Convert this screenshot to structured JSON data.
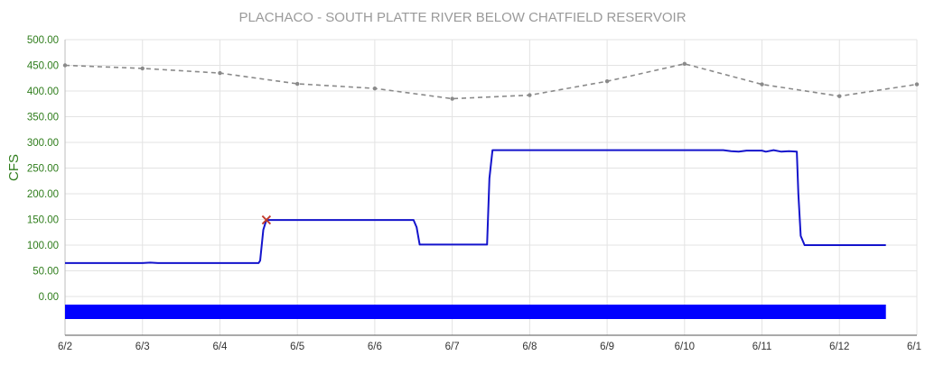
{
  "chart_data": {
    "type": "line",
    "title": "PLACHACO - SOUTH PLATTE RIVER BELOW CHATFIELD RESERVOIR",
    "xlabel": "",
    "ylabel": "CFS",
    "ylim": [
      0,
      500
    ],
    "y_ticks": [
      "500.00",
      "450.00",
      "400.00",
      "350.00",
      "300.00",
      "250.00",
      "200.00",
      "150.00",
      "100.00",
      "50.00",
      "0.00"
    ],
    "x_tick_labels": [
      "6/2",
      "6/3",
      "6/4",
      "6/5",
      "6/6",
      "6/7",
      "6/8",
      "6/9",
      "6/10",
      "6/11",
      "6/12",
      "6/1"
    ],
    "x_range_days": [
      2,
      13
    ],
    "grid": true,
    "legend": "none",
    "colors": {
      "flow": "#1414cc",
      "reference": "#8a8a8a",
      "marker": "#c0392b",
      "band": "#0000ff",
      "title": "#9a9a9a",
      "axis_label": "#2f7d1c"
    },
    "series": [
      {
        "style": "solid",
        "points": [
          [
            2.0,
            65
          ],
          [
            3.0,
            65
          ],
          [
            3.1,
            66
          ],
          [
            3.2,
            65
          ],
          [
            4.0,
            65
          ],
          [
            4.5,
            65
          ],
          [
            4.52,
            70
          ],
          [
            4.56,
            130
          ],
          [
            4.6,
            149
          ],
          [
            5.0,
            149
          ],
          [
            6.0,
            149
          ],
          [
            6.5,
            149
          ],
          [
            6.54,
            135
          ],
          [
            6.58,
            101
          ],
          [
            7.0,
            101
          ],
          [
            7.45,
            101
          ],
          [
            7.48,
            230
          ],
          [
            7.52,
            285
          ],
          [
            8.0,
            285
          ],
          [
            9.0,
            285
          ],
          [
            10.0,
            285
          ],
          [
            10.5,
            285
          ],
          [
            10.6,
            283
          ],
          [
            10.7,
            282
          ],
          [
            10.8,
            284
          ],
          [
            11.0,
            284
          ],
          [
            11.05,
            282
          ],
          [
            11.15,
            285
          ],
          [
            11.25,
            282
          ],
          [
            11.35,
            283
          ],
          [
            11.45,
            282
          ],
          [
            11.47,
            200
          ],
          [
            11.5,
            118
          ],
          [
            11.55,
            100
          ],
          [
            12.0,
            100
          ],
          [
            12.6,
            100
          ]
        ]
      },
      {
        "style": "dashed",
        "points": [
          [
            2.0,
            450
          ],
          [
            3.0,
            444
          ],
          [
            4.0,
            435
          ],
          [
            5.0,
            414
          ],
          [
            6.0,
            405
          ],
          [
            7.0,
            385
          ],
          [
            8.0,
            392
          ],
          [
            9.0,
            419
          ],
          [
            10.0,
            453
          ],
          [
            11.0,
            413
          ],
          [
            12.0,
            390
          ],
          [
            13.0,
            413
          ]
        ]
      }
    ],
    "annotations": [
      {
        "type": "x-marker",
        "x": 4.6,
        "y": 149
      }
    ],
    "band": {
      "x_start": 2.0,
      "x_end": 12.6
    }
  }
}
